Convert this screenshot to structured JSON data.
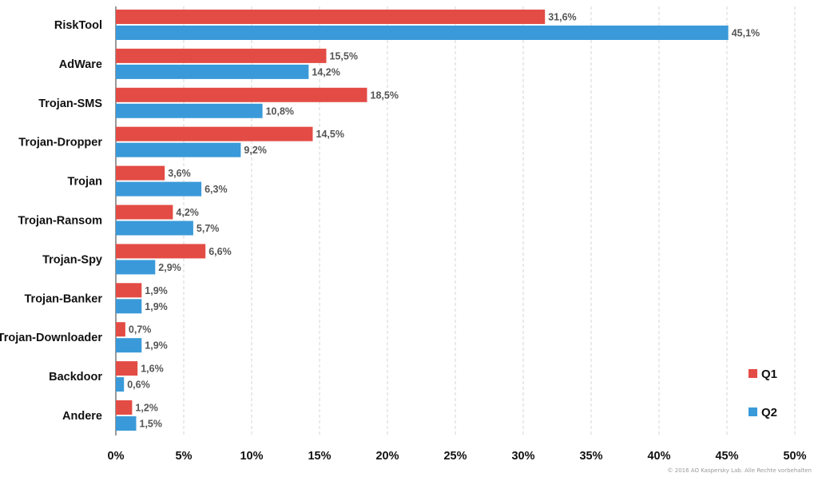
{
  "chart_data": {
    "type": "bar",
    "orientation": "horizontal",
    "categories": [
      "RiskTool",
      "AdWare",
      "Trojan-SMS",
      "Trojan-Dropper",
      "Trojan",
      "Trojan-Ransom",
      "Trojan-Spy",
      "Trojan-Banker",
      "Trojan-Downloader",
      "Backdoor",
      "Andere"
    ],
    "series": [
      {
        "name": "Q1",
        "color": "#e34c45",
        "values": [
          31.6,
          15.5,
          18.5,
          14.5,
          3.6,
          4.2,
          6.6,
          1.9,
          0.7,
          1.6,
          1.2
        ],
        "labels": [
          "31,6%",
          "15,5%",
          "18,5%",
          "14,5%",
          "3,6%",
          "4,2%",
          "6,6%",
          "1,9%",
          "0,7%",
          "1,6%",
          "1,2%"
        ]
      },
      {
        "name": "Q2",
        "color": "#3a9ad9",
        "values": [
          45.1,
          14.2,
          10.8,
          9.2,
          6.3,
          5.7,
          2.9,
          1.9,
          1.9,
          0.6,
          1.5
        ],
        "labels": [
          "45,1%",
          "14,2%",
          "10,8%",
          "9,2%",
          "6,3%",
          "5,7%",
          "2,9%",
          "1,9%",
          "1,9%",
          "0,6%",
          "1,5%"
        ]
      }
    ],
    "xlim": [
      0,
      50
    ],
    "xticks": [
      0,
      5,
      10,
      15,
      20,
      25,
      30,
      35,
      40,
      45,
      50
    ],
    "xtick_labels": [
      "0%",
      "5%",
      "10%",
      "15%",
      "20%",
      "25%",
      "30%",
      "35%",
      "40%",
      "45%",
      "50%"
    ],
    "grid": true,
    "legend_position": "bottom-right"
  },
  "copyright": "© 2016 AO Kaspersky Lab. Alle Rechte vorbehalten"
}
